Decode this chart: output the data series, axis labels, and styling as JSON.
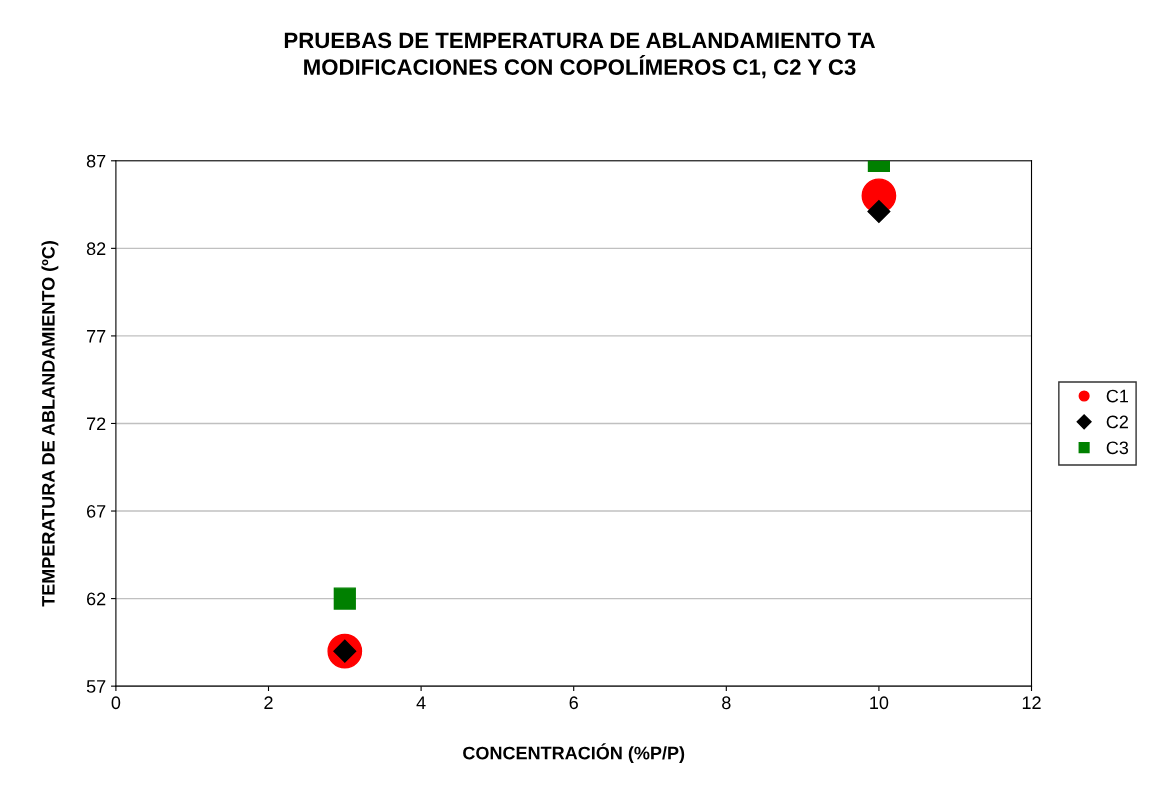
{
  "chart_data": {
    "type": "scatter",
    "title": "PRUEBAS DE TEMPERATURA DE ABLANDAMIENTO TA\nMODIFICACIONES CON COPOLÍMEROS C1, C2 Y C3",
    "xlabel": "CONCENTRACIÓN (%P/P)",
    "ylabel": "TEMPERATURA DE ABLANDAMIENTO (ºC)",
    "x": [
      3,
      10
    ],
    "series": [
      {
        "name": "C1",
        "color": "#ff0000",
        "marker": "circle",
        "values": [
          59,
          85
        ]
      },
      {
        "name": "C2",
        "color": "#000000",
        "marker": "diamond",
        "values": [
          59,
          84.1
        ]
      },
      {
        "name": "C3",
        "color": "#008000",
        "marker": "square",
        "values": [
          62,
          87
        ]
      }
    ],
    "xlim": [
      0,
      12
    ],
    "xticks": [
      0,
      2,
      4,
      6,
      8,
      10,
      12
    ],
    "ylim": [
      57,
      87
    ],
    "yticks": [
      57,
      62,
      67,
      72,
      77,
      82,
      87
    ],
    "grid": "y",
    "legend": "right"
  }
}
